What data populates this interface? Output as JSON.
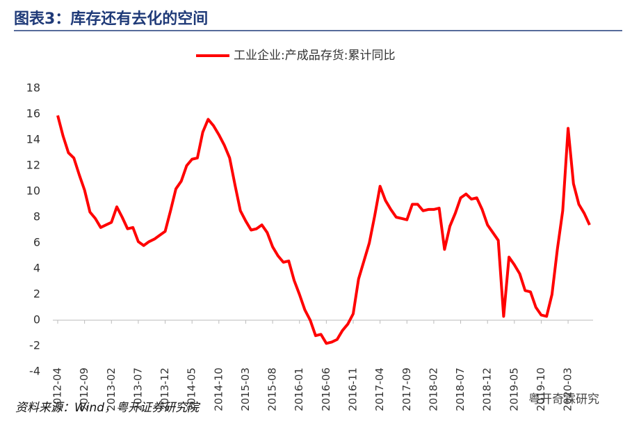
{
  "chart_data": {
    "type": "line",
    "title": "图表3：库存还有去化的空间",
    "source": "资料来源：Wind，粤开证券研究院",
    "watermark": "粤开奇霖研究",
    "categories": [
      "2012-04",
      null,
      null,
      null,
      null,
      "2012-09",
      null,
      null,
      null,
      null,
      "2013-02",
      null,
      null,
      null,
      null,
      "2013-07",
      null,
      null,
      null,
      null,
      "2013-12",
      null,
      null,
      null,
      null,
      "2014-05",
      null,
      null,
      null,
      null,
      "2014-10",
      null,
      null,
      null,
      null,
      "2015-03",
      null,
      null,
      null,
      null,
      "2015-08",
      null,
      null,
      null,
      null,
      "2016-01",
      null,
      null,
      null,
      null,
      "2016-06",
      null,
      null,
      null,
      null,
      "2016-11",
      null,
      null,
      null,
      null,
      "2017-04",
      null,
      null,
      null,
      null,
      "2017-09",
      null,
      null,
      null,
      null,
      "2018-02",
      null,
      null,
      null,
      null,
      "2018-07",
      null,
      null,
      null,
      null,
      "2018-12",
      null,
      null,
      null,
      null,
      "2019-05",
      null,
      null,
      null,
      null,
      "2019-10",
      null,
      null,
      null,
      null,
      "2020-03",
      null,
      null,
      null,
      null
    ],
    "series": [
      {
        "name": "工业企业:产成品存货:累计同比",
        "color": "#ff0000",
        "values": [
          15.9,
          14.3,
          13.0,
          12.6,
          11.3,
          10.1,
          8.4,
          7.9,
          7.2,
          7.4,
          7.6,
          8.8,
          8.0,
          7.1,
          7.2,
          6.1,
          5.8,
          6.1,
          6.3,
          6.6,
          6.9,
          8.5,
          10.2,
          10.8,
          12.0,
          12.5,
          12.6,
          14.6,
          15.6,
          15.1,
          14.4,
          13.6,
          12.6,
          10.5,
          8.5,
          7.7,
          7.0,
          7.1,
          7.4,
          6.8,
          5.7,
          5.0,
          4.5,
          4.6,
          3.1,
          2.0,
          0.8,
          0.0,
          -1.2,
          -1.1,
          -1.8,
          -1.7,
          -1.5,
          -0.8,
          -0.3,
          0.5,
          3.2,
          4.6,
          6.0,
          8.1,
          10.4,
          9.3,
          8.6,
          8.0,
          7.9,
          7.8,
          9.0,
          9.0,
          8.5,
          8.6,
          8.6,
          8.7,
          5.5,
          7.3,
          8.3,
          9.5,
          9.8,
          9.4,
          9.5,
          8.6,
          7.4,
          6.8,
          6.2,
          0.3,
          4.9,
          4.3,
          3.6,
          2.3,
          2.2,
          1.0,
          0.4,
          0.3,
          2.0,
          5.5,
          8.5,
          14.9,
          10.6,
          9.0,
          8.3,
          7.4
        ]
      }
    ],
    "ylim": [
      -4,
      18
    ],
    "yticks": [
      -4,
      -2,
      0,
      2,
      4,
      6,
      8,
      10,
      12,
      14,
      16,
      18
    ],
    "legend": "top"
  }
}
